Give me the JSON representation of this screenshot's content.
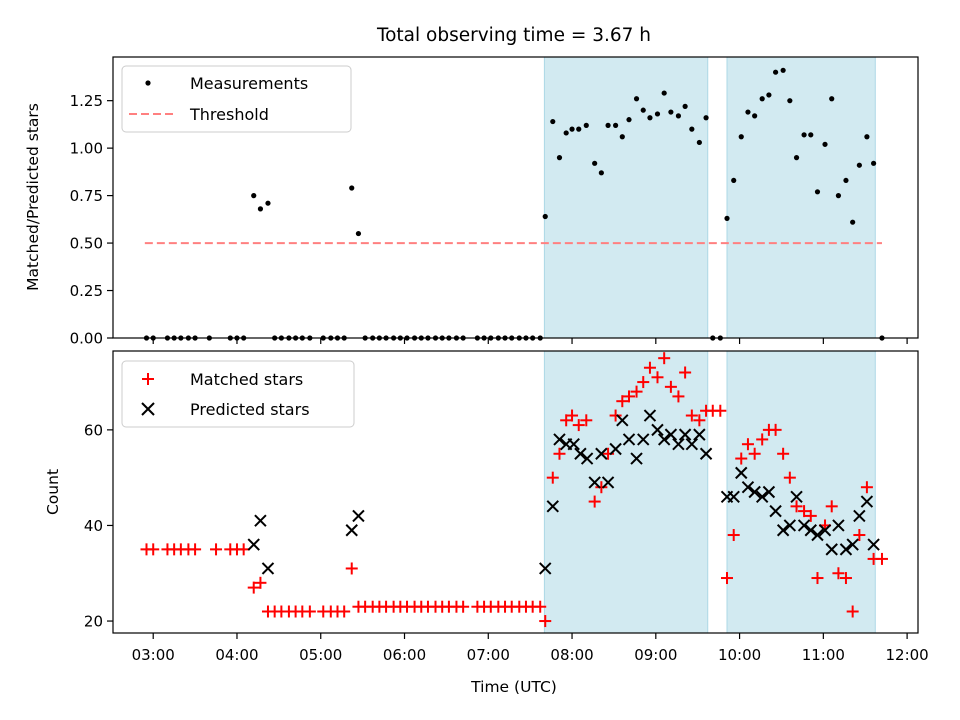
{
  "title": "Total observing time = 3.67 h",
  "xlabel": "Time (UTC)",
  "x_ticks": [
    "03:00",
    "04:00",
    "05:00",
    "06:00",
    "07:00",
    "08:00",
    "09:00",
    "10:00",
    "11:00",
    "12:00"
  ],
  "colors": {
    "shade": "#add8e6",
    "measure": "#000000",
    "threshold": "#ff8080",
    "matched": "#ff0000",
    "predicted": "#000000"
  },
  "chart_data": [
    {
      "type": "scatter",
      "ylabel": "Matched/Predicted stars",
      "ylim": [
        0,
        1.48
      ],
      "y_ticks": [
        "0.00",
        "0.25",
        "0.50",
        "0.75",
        "1.00",
        "1.25"
      ],
      "xlim_hours": [
        2.52,
        12.13
      ],
      "shaded_ranges_hours": [
        [
          7.67,
          9.62
        ],
        [
          9.85,
          11.62
        ]
      ],
      "threshold": {
        "name": "Threshold",
        "value": 0.5,
        "x_range_hours": [
          2.9,
          11.7
        ]
      },
      "legend": "upper-left",
      "series": [
        {
          "name": "Measurements",
          "x_hours": [
            2.92,
            3.0,
            3.17,
            3.25,
            3.33,
            3.42,
            3.5,
            3.67,
            3.92,
            4.0,
            4.08,
            4.2,
            4.28,
            4.37,
            4.45,
            4.53,
            4.62,
            4.7,
            4.78,
            4.87,
            5.03,
            5.12,
            5.2,
            5.28,
            5.37,
            5.45,
            5.53,
            5.62,
            5.7,
            5.78,
            5.87,
            5.95,
            6.03,
            6.12,
            6.2,
            6.28,
            6.37,
            6.45,
            6.53,
            6.62,
            6.7,
            6.87,
            6.95,
            7.03,
            7.12,
            7.2,
            7.28,
            7.37,
            7.45,
            7.53,
            7.62,
            7.68,
            7.77,
            7.85,
            7.93,
            8.0,
            8.08,
            8.17,
            8.27,
            8.35,
            8.43,
            8.52,
            8.6,
            8.68,
            8.77,
            8.85,
            8.93,
            9.02,
            9.1,
            9.18,
            9.27,
            9.35,
            9.43,
            9.52,
            9.6,
            9.68,
            9.77,
            9.85,
            9.93,
            10.02,
            10.1,
            10.18,
            10.27,
            10.35,
            10.43,
            10.52,
            10.6,
            10.68,
            10.77,
            10.85,
            10.93,
            11.02,
            11.1,
            11.18,
            11.27,
            11.35,
            11.43,
            11.52,
            11.6,
            11.7
          ],
          "y": [
            0,
            0,
            0,
            0,
            0,
            0,
            0,
            0,
            0,
            0,
            0,
            0.75,
            0.68,
            0.71,
            0,
            0,
            0,
            0,
            0,
            0,
            0,
            0,
            0,
            0,
            0.79,
            0.55,
            0,
            0,
            0,
            0,
            0,
            0,
            0,
            0,
            0,
            0,
            0,
            0,
            0,
            0,
            0,
            0,
            0,
            0,
            0,
            0,
            0,
            0,
            0,
            0,
            0,
            0.64,
            1.14,
            0.95,
            1.08,
            1.1,
            1.1,
            1.12,
            0.92,
            0.87,
            1.12,
            1.12,
            1.06,
            1.15,
            1.26,
            1.2,
            1.16,
            1.18,
            1.29,
            1.19,
            1.17,
            1.22,
            1.1,
            1.03,
            1.16,
            0,
            0,
            0.63,
            0.83,
            1.06,
            1.19,
            1.17,
            1.26,
            1.28,
            1.4,
            1.41,
            1.25,
            0.95,
            1.07,
            1.07,
            0.77,
            1.02,
            1.26,
            0.75,
            0.83,
            0.61,
            0.91,
            1.06,
            0.92,
            0
          ]
        }
      ]
    },
    {
      "type": "scatter",
      "ylabel": "Count",
      "ylim": [
        17.5,
        76.5
      ],
      "y_ticks": [
        "20",
        "40",
        "60"
      ],
      "xlim_hours": [
        2.52,
        12.13
      ],
      "shaded_ranges_hours": [
        [
          7.67,
          9.62
        ],
        [
          9.85,
          11.62
        ]
      ],
      "legend": "upper-left",
      "series": [
        {
          "name": "Matched stars",
          "marker": "+",
          "x_hours": [
            2.92,
            3.0,
            3.17,
            3.25,
            3.33,
            3.42,
            3.5,
            3.75,
            3.92,
            4.0,
            4.08,
            4.2,
            4.28,
            4.37,
            4.45,
            4.53,
            4.62,
            4.7,
            4.78,
            4.87,
            5.03,
            5.12,
            5.2,
            5.28,
            5.37,
            5.45,
            5.53,
            5.62,
            5.7,
            5.78,
            5.87,
            5.95,
            6.03,
            6.12,
            6.2,
            6.28,
            6.37,
            6.45,
            6.53,
            6.62,
            6.7,
            6.87,
            6.95,
            7.03,
            7.12,
            7.2,
            7.28,
            7.37,
            7.45,
            7.53,
            7.62,
            7.68,
            7.77,
            7.85,
            7.93,
            8.0,
            8.08,
            8.17,
            8.27,
            8.35,
            8.43,
            8.52,
            8.6,
            8.68,
            8.77,
            8.85,
            8.93,
            9.02,
            9.1,
            9.18,
            9.27,
            9.35,
            9.43,
            9.52,
            9.6,
            9.68,
            9.77,
            9.85,
            9.93,
            10.02,
            10.1,
            10.18,
            10.27,
            10.35,
            10.43,
            10.52,
            10.6,
            10.68,
            10.77,
            10.85,
            10.93,
            11.02,
            11.1,
            11.18,
            11.27,
            11.35,
            11.43,
            11.52,
            11.6,
            11.7
          ],
          "y": [
            35,
            35,
            35,
            35,
            35,
            35,
            35,
            35,
            35,
            35,
            35,
            27,
            28,
            22,
            22,
            22,
            22,
            22,
            22,
            22,
            22,
            22,
            22,
            22,
            31,
            23,
            23,
            23,
            23,
            23,
            23,
            23,
            23,
            23,
            23,
            23,
            23,
            23,
            23,
            23,
            23,
            23,
            23,
            23,
            23,
            23,
            23,
            23,
            23,
            23,
            23,
            20,
            50,
            55,
            62,
            63,
            61,
            62,
            45,
            48,
            55,
            63,
            66,
            67,
            68,
            70,
            73,
            71,
            75,
            69,
            67,
            72,
            63,
            62,
            64,
            64,
            64,
            29,
            38,
            54,
            57,
            55,
            58,
            60,
            60,
            55,
            50,
            44,
            43,
            42,
            29,
            40,
            44,
            30,
            29,
            22,
            38,
            48,
            33,
            33
          ]
        },
        {
          "name": "Predicted stars",
          "marker": "x",
          "x_hours": [
            4.2,
            4.28,
            4.37,
            5.37,
            5.45,
            7.68,
            7.77,
            7.85,
            7.93,
            8.02,
            8.1,
            8.18,
            8.27,
            8.35,
            8.43,
            8.52,
            8.6,
            8.68,
            8.77,
            8.85,
            8.93,
            9.02,
            9.1,
            9.18,
            9.27,
            9.35,
            9.43,
            9.52,
            9.6,
            9.85,
            9.93,
            10.02,
            10.1,
            10.18,
            10.27,
            10.35,
            10.43,
            10.52,
            10.6,
            10.68,
            10.77,
            10.85,
            10.93,
            11.02,
            11.1,
            11.18,
            11.27,
            11.35,
            11.43,
            11.52,
            11.6
          ],
          "y": [
            36,
            41,
            31,
            39,
            42,
            31,
            44,
            58,
            57,
            57,
            55,
            54,
            49,
            55,
            49,
            56,
            62,
            58,
            54,
            58,
            63,
            60,
            58,
            59,
            57,
            59,
            57,
            59,
            55,
            46,
            46,
            51,
            48,
            47,
            46,
            47,
            43,
            39,
            40,
            46,
            40,
            39,
            38,
            39,
            35,
            40,
            35,
            36,
            42,
            45,
            36
          ]
        }
      ]
    }
  ]
}
